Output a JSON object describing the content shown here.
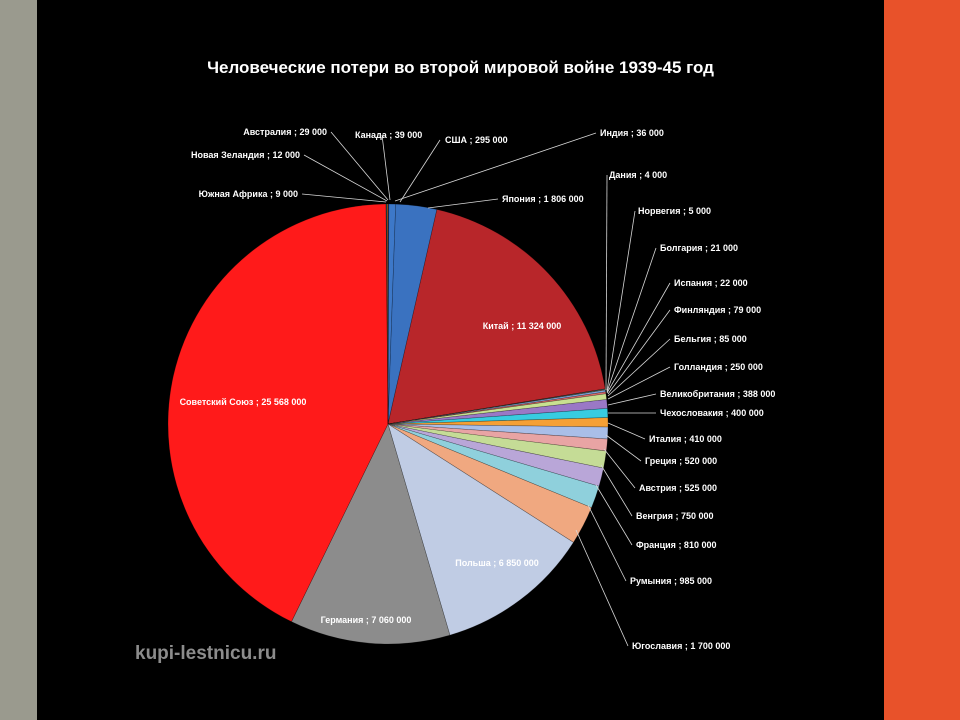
{
  "chart_data": {
    "type": "pie",
    "title": "Человеческие потери во второй мировой войне 1939-45 год",
    "data_labels": [
      "Канада ; 39 000",
      "США ; 295 000",
      "Япония ; 1 806 000",
      "Китай ; 11 324 000",
      "Дания ; 4 000",
      "Норвегия ; 5 000",
      "Болгария ; 21 000",
      "Испания ; 22 000",
      "Финляндия ; 79 000",
      "Бельгия ; 85 000",
      "Голландия ; 250 000",
      "Великобритания ; 388 000",
      "Чехословакия ; 400 000",
      "Италия ; 410 000",
      "Греция ; 520 000",
      "Австрия ; 525 000",
      "Венгрия ; 750 000",
      "Франция ; 810 000",
      "Румыния ; 985 000",
      "Югославия ; 1 700 000",
      "Польша ; 6 850 000",
      "Германия ; 7 060 000",
      "Советский Союз ; 25 568 000",
      "Южная Африка ; 9 000",
      "Новая Зеландия ; 12 000",
      "Австралия ; 29 000",
      "Индия ; 36 000"
    ],
    "slices": [
      {
        "name": "Канада",
        "value": 39000,
        "color": "#1a3f7a"
      },
      {
        "name": "США",
        "value": 295000,
        "color": "#3d78c8"
      },
      {
        "name": "Япония",
        "value": 1806000,
        "color": "#3a72c0"
      },
      {
        "name": "Китай",
        "value": 11324000,
        "color": "#b8262a"
      },
      {
        "name": "Дания",
        "value": 4000,
        "color": "#8fb04a"
      },
      {
        "name": "Норвегия",
        "value": 5000,
        "color": "#7a5a9e"
      },
      {
        "name": "Болгария",
        "value": 21000,
        "color": "#3aa6c4"
      },
      {
        "name": "Испания",
        "value": 22000,
        "color": "#f29b3a"
      },
      {
        "name": "Финляндия",
        "value": 79000,
        "color": "#7aa8e0"
      },
      {
        "name": "Бельгия",
        "value": 85000,
        "color": "#d96a6a"
      },
      {
        "name": "Голландия",
        "value": 250000,
        "color": "#c8e090"
      },
      {
        "name": "Великобритания",
        "value": 388000,
        "color": "#9a78c6"
      },
      {
        "name": "Чехословакия",
        "value": 400000,
        "color": "#38cce0"
      },
      {
        "name": "Италия",
        "value": 410000,
        "color": "#f5a036"
      },
      {
        "name": "Греция",
        "value": 520000,
        "color": "#a9bee8"
      },
      {
        "name": "Австрия",
        "value": 525000,
        "color": "#e8a4a4"
      },
      {
        "name": "Венгрия",
        "value": 750000,
        "color": "#c5dc96"
      },
      {
        "name": "Франция",
        "value": 810000,
        "color": "#b9a6d8"
      },
      {
        "name": "Румыния",
        "value": 985000,
        "color": "#8fd0dc"
      },
      {
        "name": "Югославия",
        "value": 1700000,
        "color": "#f0a880"
      },
      {
        "name": "Польша",
        "value": 6850000,
        "color": "#c0cce4"
      },
      {
        "name": "Германия",
        "value": 7060000,
        "color": "#8c8c8c"
      },
      {
        "name": "Советский Союз",
        "value": 25568000,
        "color": "#ff1a1a"
      },
      {
        "name": "Южная Африка",
        "value": 9000,
        "color": "#5a5a5a"
      },
      {
        "name": "Новая Зеландия",
        "value": 12000,
        "color": "#3a8a4a"
      },
      {
        "name": "Австралия",
        "value": 29000,
        "color": "#2a7a9a"
      },
      {
        "name": "Индия",
        "value": 36000,
        "color": "#e07020"
      }
    ],
    "start_angle": "12 o'clock",
    "direction": "clockwise",
    "labels": "outside with leader lines; large slices labeled inside"
  },
  "watermark": "kupi-lestnicu.ru",
  "colors": {
    "left_border": "#9a9a8e",
    "right_border": "#e8522a",
    "background": "#000000"
  }
}
